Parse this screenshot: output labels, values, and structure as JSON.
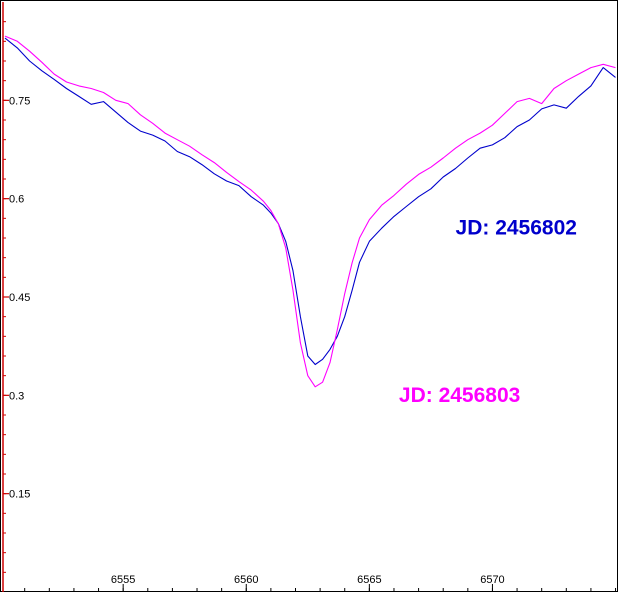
{
  "chart_data": {
    "type": "line",
    "title": "",
    "xlabel": "",
    "ylabel": "",
    "xlim": [
      6550.2,
      6575.1
    ],
    "ylim": [
      0.0,
      0.9
    ],
    "x_ticks": [
      6555,
      6560,
      6565,
      6570
    ],
    "y_ticks": [
      0.15,
      0.3,
      0.45,
      0.6,
      0.75
    ],
    "grid": false,
    "axis_color": "#cc0000",
    "series": [
      {
        "name": "JD: 2456802",
        "color": "#0000cc",
        "x": [
          6550.2,
          6550.7,
          6551.2,
          6551.7,
          6552.2,
          6552.7,
          6553.2,
          6553.7,
          6554.2,
          6554.7,
          6555.2,
          6555.7,
          6556.2,
          6556.7,
          6557.2,
          6557.7,
          6558.2,
          6558.7,
          6559.2,
          6559.7,
          6560.2,
          6560.7,
          6561.0,
          6561.3,
          6561.6,
          6561.9,
          6562.2,
          6562.5,
          6562.8,
          6563.1,
          6563.4,
          6563.7,
          6564.0,
          6564.3,
          6564.6,
          6565.0,
          6565.5,
          6566.0,
          6566.5,
          6567.0,
          6567.5,
          6568.0,
          6568.5,
          6569.0,
          6569.5,
          6570.0,
          6570.5,
          6571.0,
          6571.5,
          6572.0,
          6572.5,
          6573.0,
          6573.5,
          6574.0,
          6574.5,
          6575.0
        ],
        "y": [
          0.845,
          0.83,
          0.81,
          0.795,
          0.782,
          0.768,
          0.756,
          0.744,
          0.748,
          0.732,
          0.716,
          0.703,
          0.697,
          0.688,
          0.672,
          0.664,
          0.652,
          0.638,
          0.627,
          0.62,
          0.603,
          0.59,
          0.578,
          0.562,
          0.535,
          0.49,
          0.42,
          0.36,
          0.347,
          0.355,
          0.37,
          0.39,
          0.42,
          0.46,
          0.503,
          0.535,
          0.555,
          0.573,
          0.588,
          0.603,
          0.615,
          0.633,
          0.646,
          0.662,
          0.677,
          0.682,
          0.693,
          0.71,
          0.72,
          0.737,
          0.743,
          0.738,
          0.756,
          0.772,
          0.8,
          0.785
        ]
      },
      {
        "name": "JD: 2456803",
        "color": "#ff00ff",
        "x": [
          6550.2,
          6550.7,
          6551.2,
          6551.7,
          6552.2,
          6552.7,
          6553.2,
          6553.7,
          6554.2,
          6554.7,
          6555.2,
          6555.7,
          6556.2,
          6556.7,
          6557.2,
          6557.7,
          6558.2,
          6558.7,
          6559.2,
          6559.7,
          6560.2,
          6560.7,
          6561.0,
          6561.3,
          6561.6,
          6561.9,
          6562.2,
          6562.5,
          6562.8,
          6563.1,
          6563.4,
          6563.7,
          6564.0,
          6564.3,
          6564.6,
          6565.0,
          6565.5,
          6566.0,
          6566.5,
          6567.0,
          6567.5,
          6568.0,
          6568.5,
          6569.0,
          6569.5,
          6570.0,
          6570.5,
          6571.0,
          6571.5,
          6572.0,
          6572.5,
          6573.0,
          6573.5,
          6574.0,
          6574.5,
          6575.0
        ],
        "y": [
          0.848,
          0.84,
          0.825,
          0.808,
          0.79,
          0.778,
          0.772,
          0.768,
          0.762,
          0.75,
          0.745,
          0.728,
          0.715,
          0.7,
          0.69,
          0.68,
          0.667,
          0.655,
          0.64,
          0.626,
          0.613,
          0.596,
          0.582,
          0.562,
          0.525,
          0.46,
          0.38,
          0.33,
          0.313,
          0.32,
          0.35,
          0.4,
          0.455,
          0.502,
          0.54,
          0.568,
          0.59,
          0.605,
          0.622,
          0.637,
          0.648,
          0.662,
          0.677,
          0.69,
          0.7,
          0.712,
          0.73,
          0.748,
          0.753,
          0.745,
          0.768,
          0.78,
          0.79,
          0.8,
          0.805,
          0.8
        ]
      }
    ],
    "annotations": [
      {
        "text": "JD: 2456802",
        "color": "#0000cc",
        "x": 6568.5,
        "y": 0.545
      },
      {
        "text": "JD: 2456803",
        "color": "#ff00ff",
        "x": 6566.2,
        "y": 0.29
      }
    ]
  }
}
